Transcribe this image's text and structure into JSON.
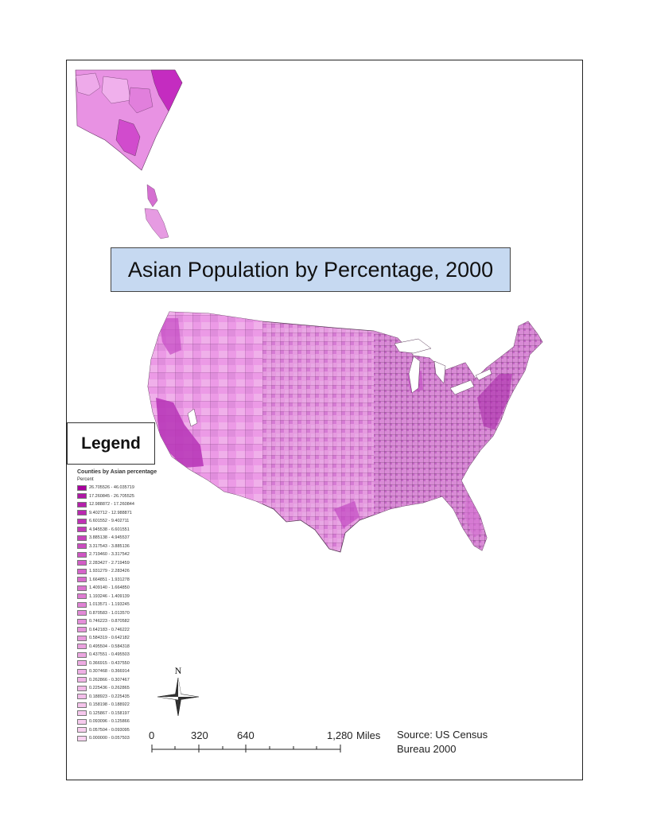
{
  "title": "Asian Population by Percentage, 2000",
  "legend": {
    "heading": "Legend",
    "layer_title": "Counties by Asian percentage",
    "field_name": "Percent",
    "classes": [
      {
        "label": "26.705526 - 46.035719",
        "color": "#a8009e"
      },
      {
        "label": "17.260845 - 26.705525",
        "color": "#b017a6"
      },
      {
        "label": "12.988872 - 17.260844",
        "color": "#b51fab"
      },
      {
        "label": "9.402712 - 12.988871",
        "color": "#ba28b0"
      },
      {
        "label": "6.601552 - 9.402711",
        "color": "#bf31b4"
      },
      {
        "label": "4.945538 - 6.601551",
        "color": "#c33ab8"
      },
      {
        "label": "3.885138 - 4.945537",
        "color": "#c743bc"
      },
      {
        "label": "3.317543 - 3.885136",
        "color": "#cb4cc0"
      },
      {
        "label": "2.719460 - 3.317542",
        "color": "#cf55c3"
      },
      {
        "label": "2.283427 - 2.719459",
        "color": "#d25dc6"
      },
      {
        "label": "1.931279 - 2.283426",
        "color": "#d565c9"
      },
      {
        "label": "1.664851 - 1.931278",
        "color": "#d86dcc"
      },
      {
        "label": "1.409140 - 1.664850",
        "color": "#db74cf"
      },
      {
        "label": "1.193246 - 1.409139",
        "color": "#de7bd2"
      },
      {
        "label": "1.013571 - 1.193245",
        "color": "#e082d5"
      },
      {
        "label": "0.870583 - 1.013570",
        "color": "#e289d7"
      },
      {
        "label": "0.746223 - 0.870582",
        "color": "#e48fd9"
      },
      {
        "label": "0.642183 - 0.746222",
        "color": "#e695db"
      },
      {
        "label": "0.584319 - 0.642182",
        "color": "#e89bdd"
      },
      {
        "label": "0.495504 - 0.584318",
        "color": "#eaa1df"
      },
      {
        "label": "0.437551 - 0.495503",
        "color": "#eca6e1"
      },
      {
        "label": "0.366915 - 0.437550",
        "color": "#eeabe3"
      },
      {
        "label": "0.307468 - 0.366914",
        "color": "#efb0e5"
      },
      {
        "label": "0.262866 - 0.307467",
        "color": "#f1b5e7"
      },
      {
        "label": "0.225436 - 0.262865",
        "color": "#f2bae8"
      },
      {
        "label": "0.188923 - 0.225435",
        "color": "#f3beea"
      },
      {
        "label": "0.158198 - 0.188922",
        "color": "#f5c3eb"
      },
      {
        "label": "0.125867 - 0.158197",
        "color": "#f6c7ed"
      },
      {
        "label": "0.093096 - 0.125866",
        "color": "#f7cbee"
      },
      {
        "label": "0.057504 - 0.093095",
        "color": "#f8cfef"
      },
      {
        "label": "0.000000 - 0.057503",
        "color": "#f9d3f1"
      }
    ]
  },
  "scale_bar": {
    "ticks": [
      "0",
      "320",
      "640",
      "1,280"
    ],
    "unit": "Miles"
  },
  "north_arrow": {
    "label": "N"
  },
  "source": "Source: US Census Bureau 2000",
  "colors": {
    "title_box_bg": "#c6d9f1",
    "county_light": "#f0a8e6",
    "county_mid": "#d36cd0",
    "county_dark": "#b63ab3",
    "county_border": "#555555"
  }
}
